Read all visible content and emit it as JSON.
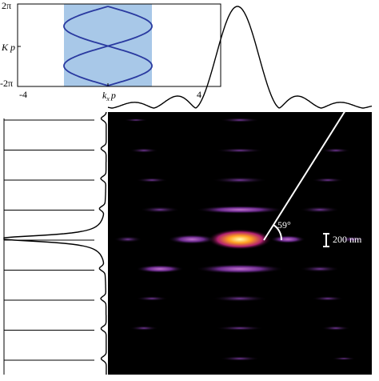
{
  "inset": {
    "y_ticks": [
      "2π",
      "-2π"
    ],
    "y_label": "K p",
    "x_ticks": [
      "-4",
      "4"
    ],
    "x_label": {
      "base": "k",
      "sub": "x",
      "rest": "p"
    }
  },
  "annotations": {
    "angle": "59°",
    "scale_bar": "200 nm"
  }
}
